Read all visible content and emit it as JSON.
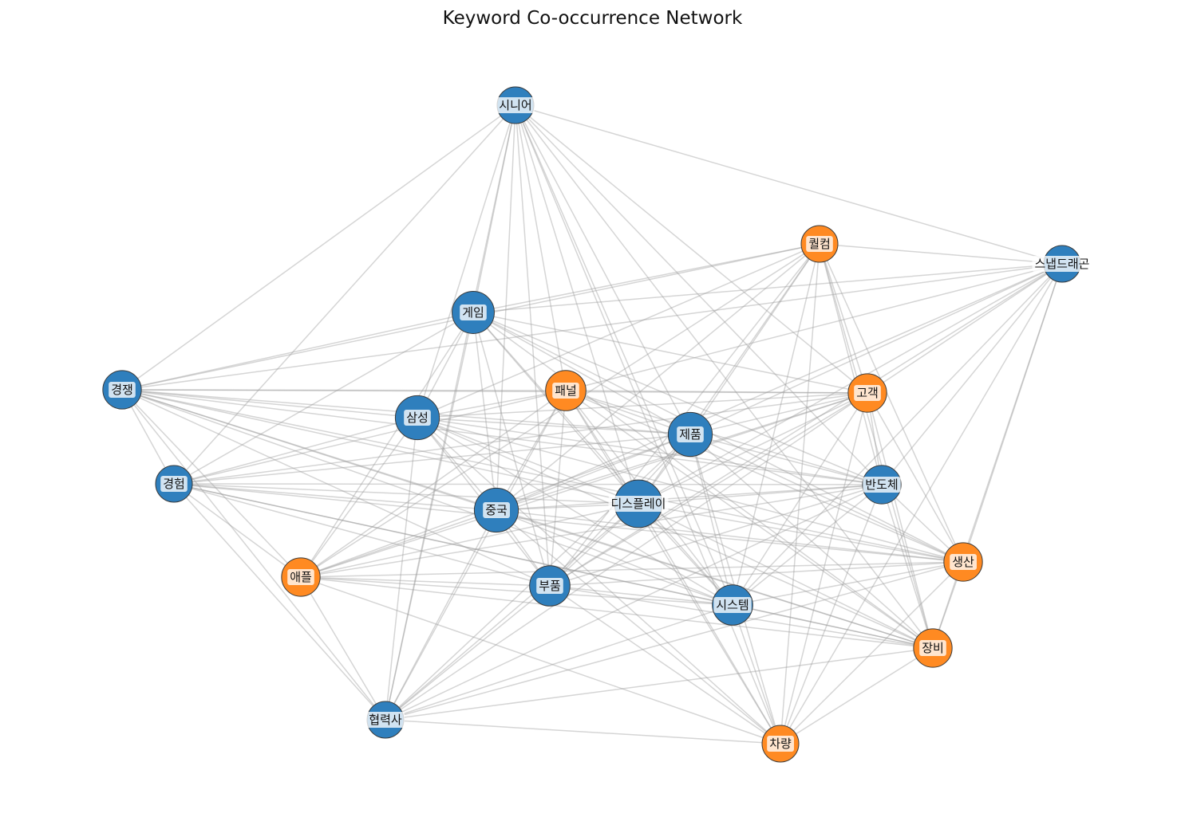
{
  "title": "Keyword Co-occurrence Network",
  "colors": {
    "group_blue": "#2f7fbd",
    "group_orange": "#ff8a22",
    "edge": "#9a9a9a"
  },
  "nodes": [
    {
      "id": "시니어",
      "group": "blue",
      "size": 1.0
    },
    {
      "id": "퀄컴",
      "group": "orange",
      "size": 1.0
    },
    {
      "id": "스냅드래곤",
      "group": "blue",
      "size": 1.0
    },
    {
      "id": "게임",
      "group": "blue",
      "size": 1.15
    },
    {
      "id": "경쟁",
      "group": "blue",
      "size": 1.05
    },
    {
      "id": "패널",
      "group": "orange",
      "size": 1.1
    },
    {
      "id": "고객",
      "group": "orange",
      "size": 1.05
    },
    {
      "id": "삼성",
      "group": "blue",
      "size": 1.2
    },
    {
      "id": "제품",
      "group": "blue",
      "size": 1.2
    },
    {
      "id": "경험",
      "group": "blue",
      "size": 1.0
    },
    {
      "id": "반도체",
      "group": "blue",
      "size": 1.05
    },
    {
      "id": "중국",
      "group": "blue",
      "size": 1.2
    },
    {
      "id": "디스플레이",
      "group": "blue",
      "size": 1.3
    },
    {
      "id": "생산",
      "group": "orange",
      "size": 1.05
    },
    {
      "id": "애플",
      "group": "orange",
      "size": 1.05
    },
    {
      "id": "부품",
      "group": "blue",
      "size": 1.1
    },
    {
      "id": "시스템",
      "group": "blue",
      "size": 1.1
    },
    {
      "id": "장비",
      "group": "orange",
      "size": 1.05
    },
    {
      "id": "협력사",
      "group": "blue",
      "size": 1.0
    },
    {
      "id": "차량",
      "group": "orange",
      "size": 1.0
    }
  ],
  "edges": [
    [
      "시니어",
      "경쟁"
    ],
    [
      "시니어",
      "경험"
    ],
    [
      "시니어",
      "게임"
    ],
    [
      "시니어",
      "삼성"
    ],
    [
      "시니어",
      "중국"
    ],
    [
      "시니어",
      "부품"
    ],
    [
      "시니어",
      "디스플레이"
    ],
    [
      "시니어",
      "제품"
    ],
    [
      "시니어",
      "시스템"
    ],
    [
      "시니어",
      "고객"
    ],
    [
      "시니어",
      "스냅드래곤"
    ],
    [
      "시니어",
      "반도체"
    ],
    [
      "시니어",
      "차량"
    ],
    [
      "시니어",
      "협력사"
    ],
    [
      "시니어",
      "패널"
    ],
    [
      "시니어",
      "장비"
    ],
    [
      "퀄컴",
      "스냅드래곤"
    ],
    [
      "퀄컴",
      "게임"
    ],
    [
      "퀄컴",
      "삼성"
    ],
    [
      "퀄컴",
      "중국"
    ],
    [
      "퀄컴",
      "디스플레이"
    ],
    [
      "퀄컴",
      "제품"
    ],
    [
      "퀄컴",
      "시스템"
    ],
    [
      "퀄컴",
      "생산"
    ],
    [
      "퀄컴",
      "장비"
    ],
    [
      "퀄컴",
      "고객"
    ],
    [
      "퀄컴",
      "차량"
    ],
    [
      "퀄컴",
      "부품"
    ],
    [
      "퀄컴",
      "반도체"
    ],
    [
      "퀄컴",
      "경쟁"
    ],
    [
      "퀄컴",
      "애플"
    ],
    [
      "스냅드래곤",
      "게임"
    ],
    [
      "스냅드래곤",
      "패널"
    ],
    [
      "스냅드래곤",
      "고객"
    ],
    [
      "스냅드래곤",
      "제품"
    ],
    [
      "스냅드래곤",
      "중국"
    ],
    [
      "스냅드래곤",
      "부품"
    ],
    [
      "스냅드래곤",
      "시스템"
    ],
    [
      "스냅드래곤",
      "생산"
    ],
    [
      "스냅드래곤",
      "차량"
    ],
    [
      "스냅드래곤",
      "디스플레이"
    ],
    [
      "스냅드래곤",
      "반도체"
    ],
    [
      "스냅드래곤",
      "경쟁"
    ],
    [
      "스냅드래곤",
      "장비"
    ],
    [
      "게임",
      "삼성"
    ],
    [
      "게임",
      "중국"
    ],
    [
      "게임",
      "디스플레이"
    ],
    [
      "게임",
      "제품"
    ],
    [
      "게임",
      "부품"
    ],
    [
      "게임",
      "협력사"
    ],
    [
      "게임",
      "반도체"
    ],
    [
      "게임",
      "고객"
    ],
    [
      "게임",
      "경험"
    ],
    [
      "게임",
      "시스템"
    ],
    [
      "게임",
      "애플"
    ],
    [
      "게임",
      "경쟁"
    ],
    [
      "게임",
      "생산"
    ],
    [
      "게임",
      "장비"
    ],
    [
      "경쟁",
      "패널"
    ],
    [
      "경쟁",
      "삼성"
    ],
    [
      "경쟁",
      "제품"
    ],
    [
      "경쟁",
      "중국"
    ],
    [
      "경쟁",
      "디스플레이"
    ],
    [
      "경쟁",
      "반도체"
    ],
    [
      "경쟁",
      "부품"
    ],
    [
      "경쟁",
      "협력사"
    ],
    [
      "경쟁",
      "경험"
    ],
    [
      "경쟁",
      "애플"
    ],
    [
      "경쟁",
      "시스템"
    ],
    [
      "경쟁",
      "생산"
    ],
    [
      "경쟁",
      "고객"
    ],
    [
      "경쟁",
      "장비"
    ],
    [
      "패널",
      "삼성"
    ],
    [
      "패널",
      "제품"
    ],
    [
      "패널",
      "중국"
    ],
    [
      "패널",
      "디스플레이"
    ],
    [
      "패널",
      "부품"
    ],
    [
      "패널",
      "시스템"
    ],
    [
      "패널",
      "애플"
    ],
    [
      "패널",
      "경험"
    ],
    [
      "패널",
      "고객"
    ],
    [
      "패널",
      "반도체"
    ],
    [
      "패널",
      "생산"
    ],
    [
      "패널",
      "장비"
    ],
    [
      "패널",
      "차량"
    ],
    [
      "패널",
      "협력사"
    ],
    [
      "고객",
      "삼성"
    ],
    [
      "고객",
      "제품"
    ],
    [
      "고객",
      "중국"
    ],
    [
      "고객",
      "디스플레이"
    ],
    [
      "고객",
      "부품"
    ],
    [
      "고객",
      "시스템"
    ],
    [
      "고객",
      "반도체"
    ],
    [
      "고객",
      "생산"
    ],
    [
      "고객",
      "장비"
    ],
    [
      "고객",
      "차량"
    ],
    [
      "고객",
      "경험"
    ],
    [
      "고객",
      "애플"
    ],
    [
      "고객",
      "협력사"
    ],
    [
      "삼성",
      "제품"
    ],
    [
      "삼성",
      "중국"
    ],
    [
      "삼성",
      "디스플레이"
    ],
    [
      "삼성",
      "부품"
    ],
    [
      "삼성",
      "반도체"
    ],
    [
      "삼성",
      "경험"
    ],
    [
      "삼성",
      "애플"
    ],
    [
      "삼성",
      "시스템"
    ],
    [
      "삼성",
      "협력사"
    ],
    [
      "삼성",
      "생산"
    ],
    [
      "삼성",
      "장비"
    ],
    [
      "삼성",
      "차량"
    ],
    [
      "제품",
      "중국"
    ],
    [
      "제품",
      "디스플레이"
    ],
    [
      "제품",
      "부품"
    ],
    [
      "제품",
      "반도체"
    ],
    [
      "제품",
      "시스템"
    ],
    [
      "제품",
      "경험"
    ],
    [
      "제품",
      "애플"
    ],
    [
      "제품",
      "생산"
    ],
    [
      "제품",
      "장비"
    ],
    [
      "제품",
      "차량"
    ],
    [
      "제품",
      "협력사"
    ],
    [
      "경험",
      "중국"
    ],
    [
      "경험",
      "디스플레이"
    ],
    [
      "경험",
      "반도체"
    ],
    [
      "경험",
      "부품"
    ],
    [
      "경험",
      "애플"
    ],
    [
      "경험",
      "시스템"
    ],
    [
      "경험",
      "협력사"
    ],
    [
      "경험",
      "생산"
    ],
    [
      "경험",
      "장비"
    ],
    [
      "반도체",
      "중국"
    ],
    [
      "반도체",
      "디스플레이"
    ],
    [
      "반도체",
      "부품"
    ],
    [
      "반도체",
      "시스템"
    ],
    [
      "반도체",
      "생산"
    ],
    [
      "반도체",
      "장비"
    ],
    [
      "반도체",
      "차량"
    ],
    [
      "반도체",
      "애플"
    ],
    [
      "반도체",
      "협력사"
    ],
    [
      "중국",
      "디스플레이"
    ],
    [
      "중국",
      "부품"
    ],
    [
      "중국",
      "시스템"
    ],
    [
      "중국",
      "애플"
    ],
    [
      "중국",
      "생산"
    ],
    [
      "중국",
      "장비"
    ],
    [
      "중국",
      "협력사"
    ],
    [
      "중국",
      "차량"
    ],
    [
      "디스플레이",
      "부품"
    ],
    [
      "디스플레이",
      "시스템"
    ],
    [
      "디스플레이",
      "애플"
    ],
    [
      "디스플레이",
      "생산"
    ],
    [
      "디스플레이",
      "장비"
    ],
    [
      "디스플레이",
      "차량"
    ],
    [
      "디스플레이",
      "협력사"
    ],
    [
      "생산",
      "부품"
    ],
    [
      "생산",
      "시스템"
    ],
    [
      "생산",
      "장비"
    ],
    [
      "생산",
      "차량"
    ],
    [
      "생산",
      "애플"
    ],
    [
      "생산",
      "협력사"
    ],
    [
      "애플",
      "부품"
    ],
    [
      "애플",
      "시스템"
    ],
    [
      "애플",
      "장비"
    ],
    [
      "애플",
      "협력사"
    ],
    [
      "애플",
      "차량"
    ],
    [
      "부품",
      "시스템"
    ],
    [
      "부품",
      "장비"
    ],
    [
      "부품",
      "협력사"
    ],
    [
      "부품",
      "차량"
    ],
    [
      "시스템",
      "장비"
    ],
    [
      "시스템",
      "차량"
    ],
    [
      "시스템",
      "협력사"
    ],
    [
      "장비",
      "차량"
    ],
    [
      "장비",
      "협력사"
    ],
    [
      "협력사",
      "차량"
    ]
  ]
}
